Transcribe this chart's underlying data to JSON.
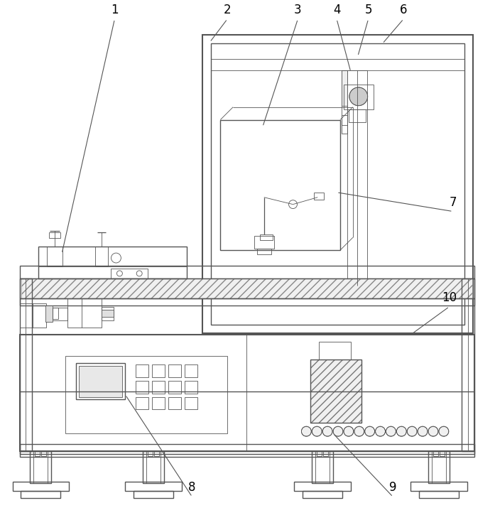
{
  "bg_color": "#ffffff",
  "line_color": "#555555",
  "label_color": "#000000",
  "lw_thick": 1.5,
  "lw_med": 1.0,
  "lw_thin": 0.6,
  "fig_width": 6.97,
  "fig_height": 7.15
}
